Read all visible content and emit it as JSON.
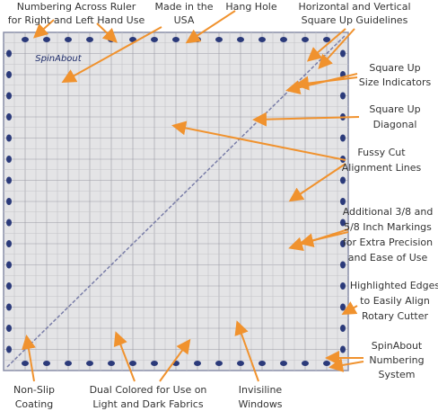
{
  "logo": "SpinAbout",
  "labels": [
    {
      "lines": [
        "Numbering Across Ruler",
        "for Right and Left Hand Use"
      ]
    },
    {
      "lines": [
        "Made in the",
        "USA"
      ]
    },
    {
      "lines": [
        "Hang Hole"
      ]
    },
    {
      "lines": [
        "Horizontal and Vertical",
        "Square Up Guidelines"
      ]
    },
    {
      "lines": [
        "Square Up",
        "Size Indicators"
      ]
    },
    {
      "lines": [
        "Square Up",
        "Diagonal"
      ]
    },
    {
      "lines": [
        "Fussy Cut",
        "Alignment Lines"
      ]
    },
    {
      "lines": [
        "Additional 3/8 and",
        "5/8 Inch Markings",
        "for Extra Precision",
        "and Ease of Use"
      ]
    },
    {
      "lines": [
        "Highlighted Edges",
        "to Easily Align",
        "Rotary Cutter"
      ]
    },
    {
      "lines": [
        "SpinAbout",
        "Numbering",
        "System"
      ]
    },
    {
      "lines": [
        "Non-Slip",
        "Coating"
      ]
    },
    {
      "lines": [
        "Dual Colored for Use on",
        "Light and Dark Fabrics"
      ]
    },
    {
      "lines": [
        "Invisiline",
        "Windows"
      ]
    }
  ]
}
